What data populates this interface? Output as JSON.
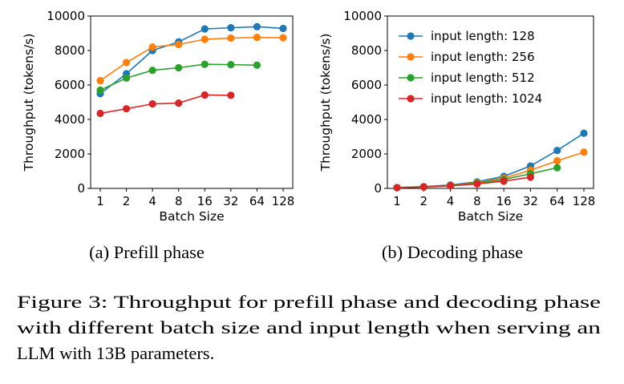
{
  "charts": [
    {
      "type": "line",
      "ylabel": "Throughput (tokens/s)",
      "xlabel": "Batch Size",
      "categories": [
        "1",
        "2",
        "4",
        "8",
        "16",
        "32",
        "64",
        "128"
      ],
      "ylim": [
        0,
        10000
      ],
      "yticks": [
        "0",
        "2000",
        "4000",
        "6000",
        "8000",
        "10000"
      ],
      "legend": "none",
      "caption": "(a) Prefill phase",
      "series": [
        {
          "name": "input length: 128",
          "color": "#1f77b4",
          "values": [
            5500,
            6650,
            8000,
            8500,
            9250,
            9320,
            9380,
            9280
          ]
        },
        {
          "name": "input length: 256",
          "color": "#ff7f0e",
          "values": [
            6250,
            7300,
            8200,
            8350,
            8650,
            8720,
            8760,
            8740
          ]
        },
        {
          "name": "input length: 512",
          "color": "#2ca02c",
          "values": [
            5700,
            6400,
            6850,
            7000,
            7200,
            7180,
            7150,
            null
          ]
        },
        {
          "name": "input length: 1024",
          "color": "#d62728",
          "values": [
            4350,
            4620,
            4900,
            4950,
            5420,
            5400,
            null,
            null
          ]
        }
      ]
    },
    {
      "type": "line",
      "ylabel": "Throughput (tokens/s)",
      "xlabel": "Batch Size",
      "categories": [
        "1",
        "2",
        "4",
        "8",
        "16",
        "32",
        "64",
        "128"
      ],
      "ylim": [
        0,
        10000
      ],
      "yticks": [
        "0",
        "2000",
        "4000",
        "6000",
        "8000",
        "10000"
      ],
      "legend": "top-left",
      "caption": "(b) Decoding phase",
      "series": [
        {
          "name": "input length: 128",
          "color": "#1f77b4",
          "values": [
            50,
            100,
            200,
            380,
            700,
            1300,
            2200,
            3200
          ]
        },
        {
          "name": "input length: 256",
          "color": "#ff7f0e",
          "values": [
            50,
            95,
            180,
            330,
            600,
            1050,
            1600,
            2100
          ]
        },
        {
          "name": "input length: 512",
          "color": "#2ca02c",
          "values": [
            45,
            90,
            170,
            300,
            520,
            850,
            1200,
            null
          ]
        },
        {
          "name": "input length: 1024",
          "color": "#d62728",
          "values": [
            40,
            80,
            150,
            260,
            420,
            650,
            null,
            null
          ]
        }
      ]
    }
  ],
  "figure_caption": [
    "Figure 3: Throughput for prefill phase and decoding phase",
    "with different batch size and input length when serving an",
    "LLM with 13B parameters."
  ]
}
